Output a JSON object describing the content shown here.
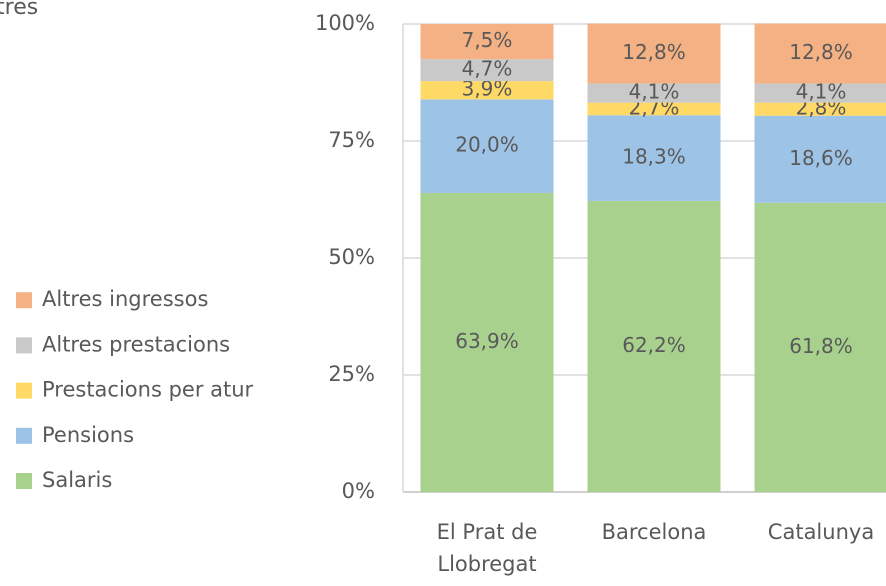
{
  "chart_data": {
    "type": "stacked_bar",
    "title": "tres",
    "categories": [
      "El Prat de Llobregat",
      "Barcelona",
      "Catalunya"
    ],
    "series": [
      {
        "name": "Salaris",
        "color": "#a9d18e",
        "values": [
          63.9,
          62.2,
          61.8
        ],
        "value_labels": [
          "63,9%",
          "62,2%",
          "61,8%"
        ]
      },
      {
        "name": "Pensions",
        "color": "#9dc3e6",
        "values": [
          20.0,
          18.3,
          18.6
        ],
        "value_labels": [
          "20,0%",
          "18,3%",
          "18,6%"
        ]
      },
      {
        "name": "Prestacions per atur",
        "color": "#ffd966",
        "values": [
          3.9,
          2.7,
          2.8
        ],
        "value_labels": [
          "3,9%",
          "2,7%",
          "2,8%"
        ]
      },
      {
        "name": "Altres prestacions",
        "color": "#c9c9c9",
        "values": [
          4.7,
          4.1,
          4.1
        ],
        "value_labels": [
          "4,7%",
          "4,1%",
          "4,1%"
        ]
      },
      {
        "name": "Altres ingressos",
        "color": "#f4b183",
        "values": [
          7.5,
          12.8,
          12.8
        ],
        "value_labels": [
          "7,5%",
          "12,8%",
          "12,8%"
        ]
      }
    ],
    "ylim": [
      0,
      100
    ],
    "yticks": [
      {
        "value": 0,
        "label": "0%"
      },
      {
        "value": 25,
        "label": "25%"
      },
      {
        "value": 50,
        "label": "50%"
      },
      {
        "value": 75,
        "label": "75%"
      },
      {
        "value": 100,
        "label": "100%"
      }
    ],
    "grid": true,
    "legend": "left"
  }
}
